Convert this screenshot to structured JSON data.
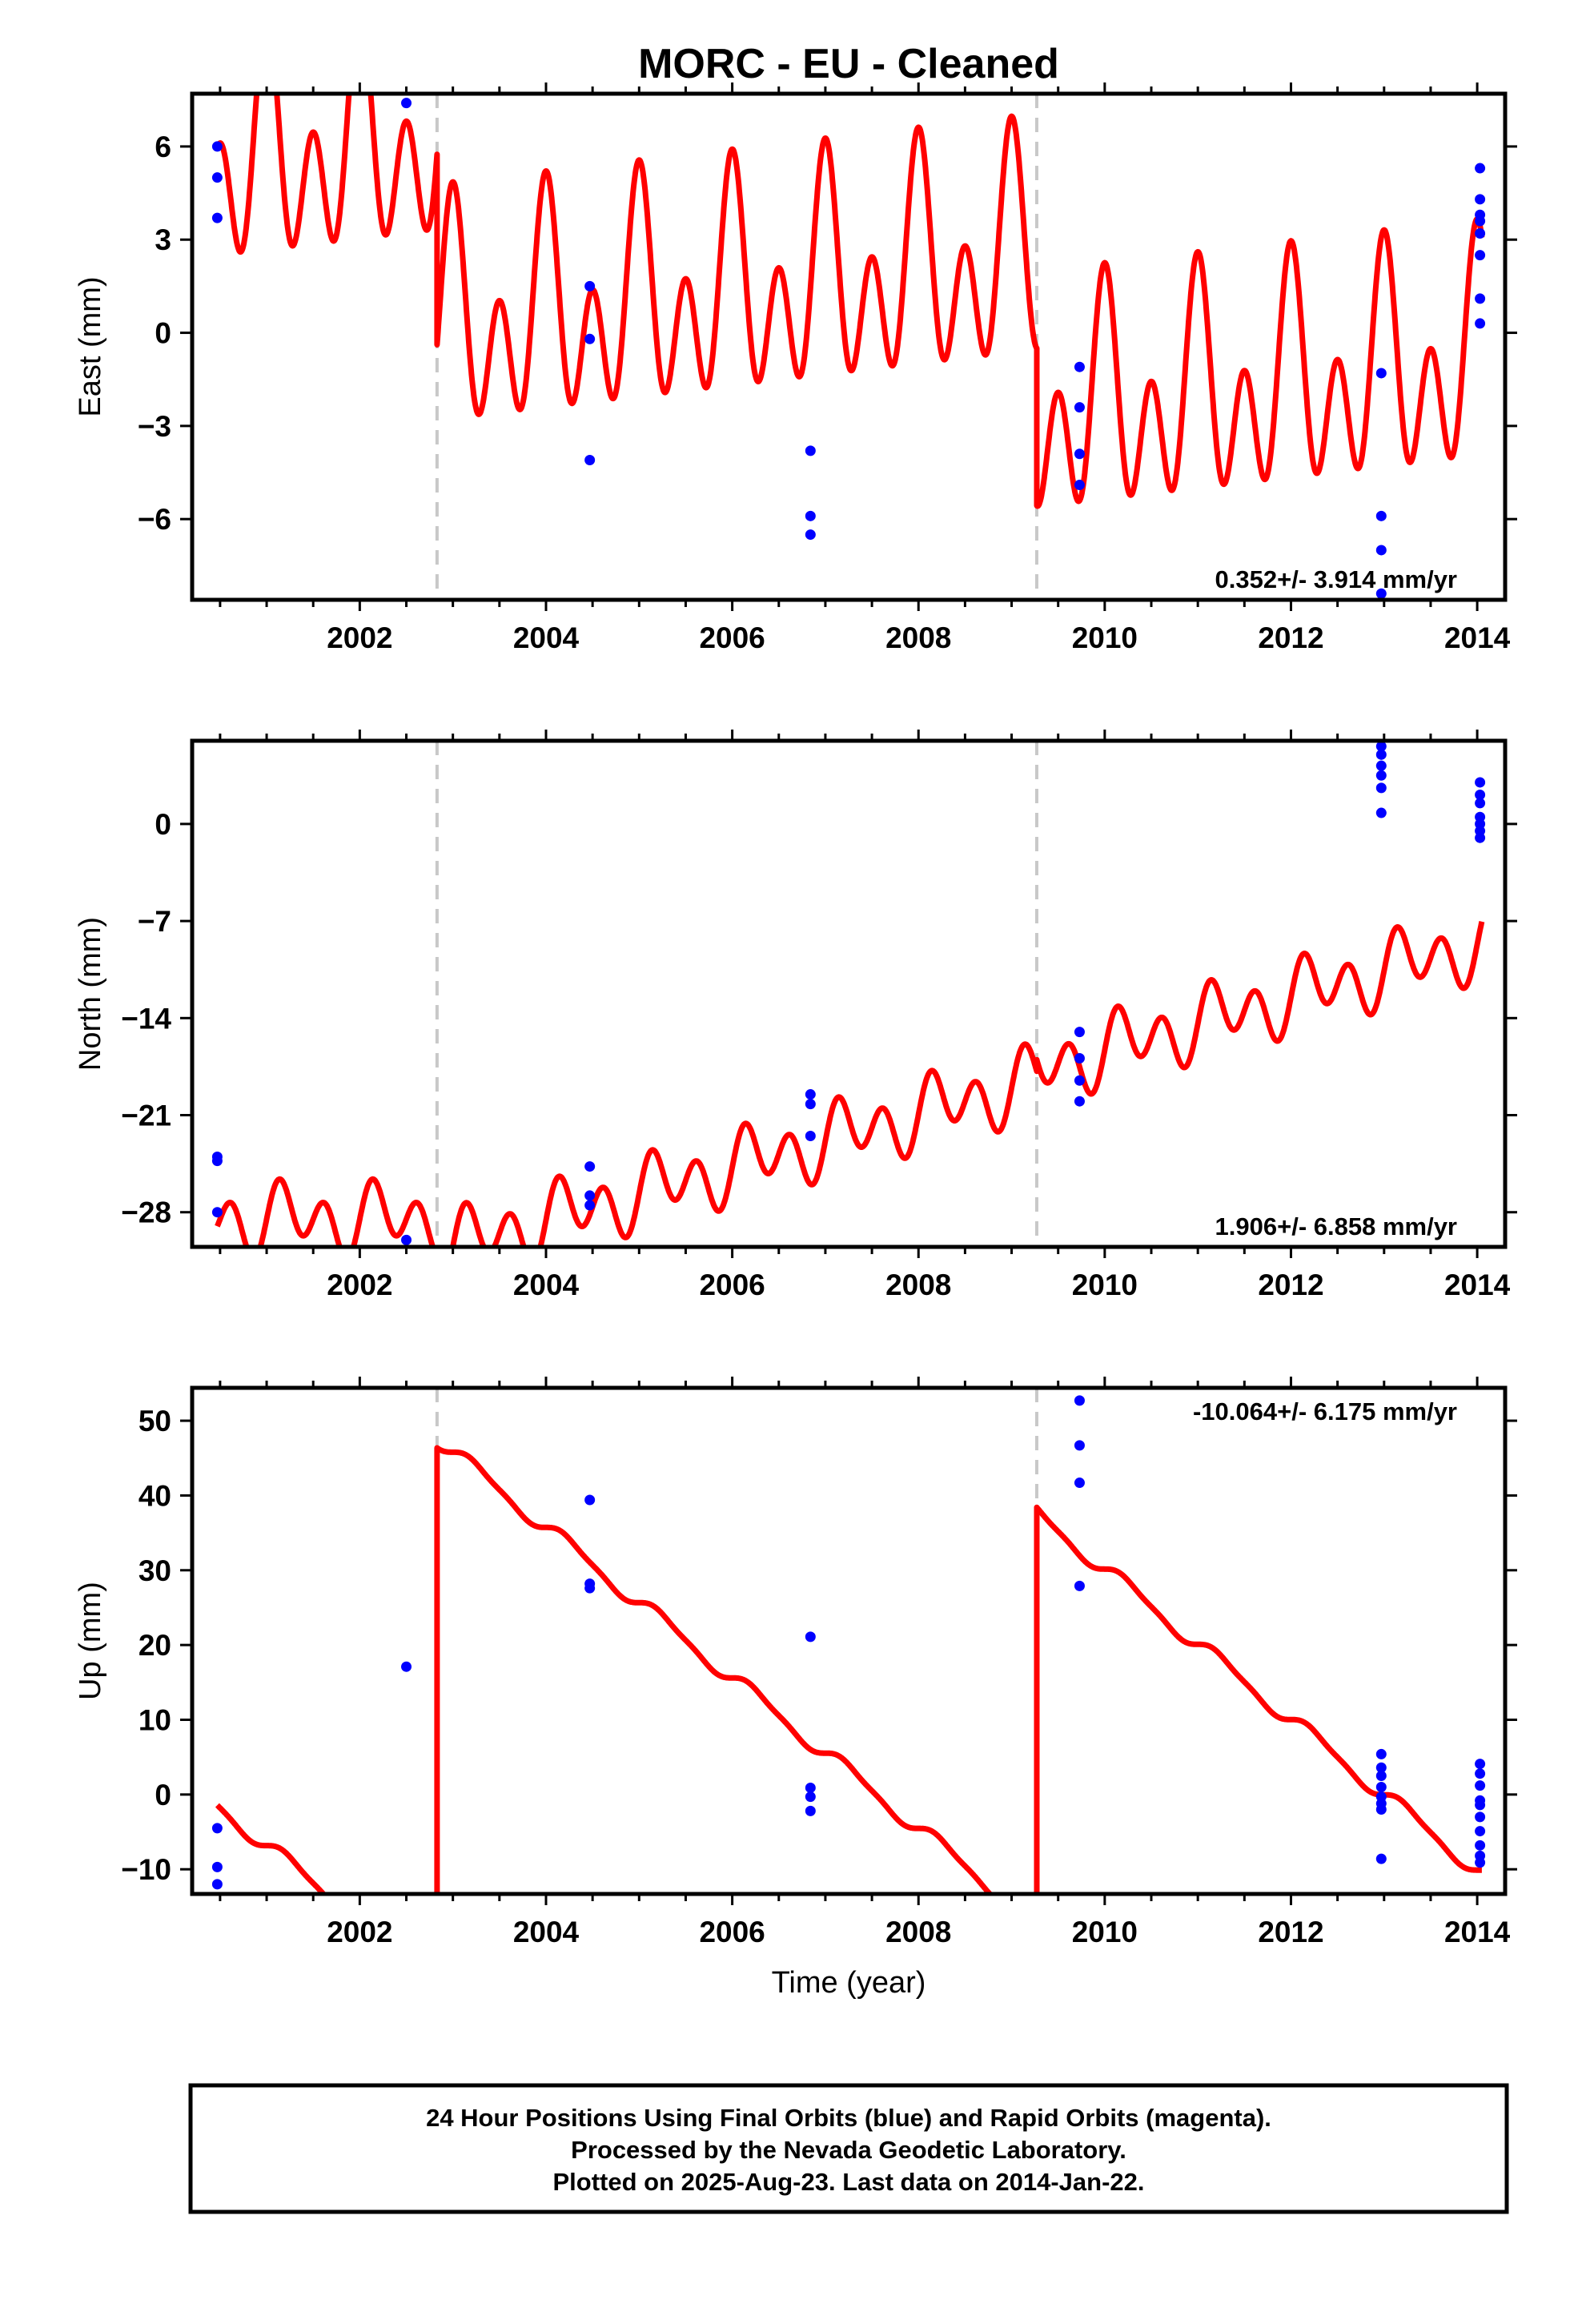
{
  "title": "MORC  - EU - Cleaned",
  "xlabel": "Time (year)",
  "footer": {
    "line1": "24 Hour Positions Using Final Orbits (blue) and Rapid Orbits (magenta).",
    "line2": "Processed by the Nevada Geodetic Laboratory.",
    "line3": "Plotted on 2025-Aug-23. Last data on 2014-Jan-22."
  },
  "colors": {
    "model": "#ff0000",
    "final_orbits": "#0000ff",
    "steps": "#c8c8c8",
    "frame": "#000000"
  },
  "chart_data": [
    {
      "type": "scatter",
      "panel": "east",
      "ylabel": "East (mm)",
      "xlim": [
        2000.2,
        2014.3
      ],
      "ylim": [
        -8.6,
        7.7
      ],
      "xticks": [
        2002,
        2004,
        2006,
        2008,
        2010,
        2012,
        2014
      ],
      "yticks": [
        -6,
        -3,
        0,
        3,
        6
      ],
      "ytick_labels": [
        "−6",
        "−3",
        "0",
        "3",
        "6"
      ],
      "grid": false,
      "rate_label": "0.352+/- 3.914 mm/yr",
      "rate_position": "bottom-right",
      "steps": [
        2002.83,
        2009.27
      ],
      "series": [
        {
          "values": [
            [
              2000.47,
              6.0
            ],
            [
              2000.47,
              5.0
            ],
            [
              2000.47,
              3.7
            ],
            [
              2002.5,
              7.4
            ],
            [
              2004.47,
              1.5
            ],
            [
              2004.47,
              -0.2
            ],
            [
              2004.47,
              -4.1
            ],
            [
              2006.84,
              -3.8
            ],
            [
              2006.84,
              -5.9
            ],
            [
              2006.84,
              -6.5
            ],
            [
              2009.73,
              -1.1
            ],
            [
              2009.73,
              -2.4
            ],
            [
              2009.73,
              -3.9
            ],
            [
              2009.73,
              -4.9
            ],
            [
              2012.97,
              -1.3
            ],
            [
              2012.97,
              -5.9
            ],
            [
              2012.97,
              -7.0
            ],
            [
              2012.97,
              -8.4
            ],
            [
              2014.03,
              5.3
            ],
            [
              2014.03,
              4.3
            ],
            [
              2014.03,
              3.8
            ],
            [
              2014.03,
              3.6
            ],
            [
              2014.03,
              3.2
            ],
            [
              2014.03,
              2.5
            ],
            [
              2014.03,
              1.1
            ],
            [
              2014.03,
              0.3
            ]
          ]
        }
      ],
      "model": {
        "segments": [
          {
            "start": 2000.47,
            "end": 2002.83,
            "offset": 5.4,
            "slope": 0.352,
            "annual_amp": 2.0,
            "annual_phase": 1.5708,
            "semiannual_amp": 2.7,
            "semiannual_phase": 1.5708
          },
          {
            "start": 2002.83,
            "end": 2009.27,
            "offset": 0.1,
            "slope": 0.352,
            "annual_amp": 2.0,
            "annual_phase": 1.5708,
            "semiannual_amp": 2.7,
            "semiannual_phase": 1.5708
          },
          {
            "start": 2009.27,
            "end": 2014.05,
            "offset": -2.7,
            "slope": 0.352,
            "annual_amp": 2.0,
            "annual_phase": 1.5708,
            "semiannual_amp": 2.7,
            "semiannual_phase": 1.5708
          }
        ]
      }
    },
    {
      "type": "scatter",
      "panel": "north",
      "ylabel": "North (mm)",
      "xlim": [
        2000.2,
        2014.3
      ],
      "ylim": [
        -30.5,
        6.0
      ],
      "xticks": [
        2002,
        2004,
        2006,
        2008,
        2010,
        2012,
        2014
      ],
      "yticks": [
        -28,
        -21,
        -14,
        -7,
        0
      ],
      "ytick_labels": [
        "−28",
        "−21",
        "−14",
        "−7",
        "0"
      ],
      "grid": false,
      "rate_label": "1.906+/- 6.858 mm/yr",
      "rate_position": "bottom-right",
      "steps": [
        2002.83,
        2009.27
      ],
      "series": [
        {
          "values": [
            [
              2000.47,
              -24.0
            ],
            [
              2000.47,
              -24.3
            ],
            [
              2000.47,
              -28.0
            ],
            [
              2002.5,
              -30.0
            ],
            [
              2004.47,
              -24.7
            ],
            [
              2004.47,
              -26.8
            ],
            [
              2004.47,
              -27.5
            ],
            [
              2006.84,
              -19.5
            ],
            [
              2006.84,
              -20.2
            ],
            [
              2006.84,
              -22.5
            ],
            [
              2009.73,
              -15.0
            ],
            [
              2009.73,
              -16.9
            ],
            [
              2009.73,
              -18.5
            ],
            [
              2009.73,
              -20.0
            ],
            [
              2012.97,
              5.6
            ],
            [
              2012.97,
              5.0
            ],
            [
              2012.97,
              4.2
            ],
            [
              2012.97,
              3.5
            ],
            [
              2012.97,
              2.6
            ],
            [
              2012.97,
              0.8
            ],
            [
              2014.03,
              3.0
            ],
            [
              2014.03,
              2.1
            ],
            [
              2014.03,
              1.5
            ],
            [
              2014.03,
              0.5
            ],
            [
              2014.03,
              0.0
            ],
            [
              2014.03,
              -0.5
            ],
            [
              2014.03,
              -1.0
            ]
          ]
        }
      ],
      "model": {
        "segments": [
          {
            "start": 2000.47,
            "end": 2002.83,
            "offset": -28.5,
            "slope": 0.0,
            "annual_amp": 1.2,
            "annual_phase": 0.0,
            "semiannual_amp": 2.0,
            "semiannual_phase": 0.0
          },
          {
            "start": 2002.83,
            "end": 2009.27,
            "offset": -30.8,
            "slope": 1.906,
            "annual_amp": 1.2,
            "annual_phase": 0.0,
            "semiannual_amp": 2.0,
            "semiannual_phase": 0.0
          },
          {
            "start": 2009.27,
            "end": 2014.05,
            "offset": -17.7,
            "slope": 1.906,
            "annual_amp": 1.2,
            "annual_phase": 0.0,
            "semiannual_amp": 2.0,
            "semiannual_phase": 0.0
          }
        ]
      }
    },
    {
      "type": "scatter",
      "panel": "up",
      "ylabel": "Up (mm)",
      "xlim": [
        2000.2,
        2014.3
      ],
      "ylim": [
        -13.3,
        54.4
      ],
      "xticks": [
        2002,
        2004,
        2006,
        2008,
        2010,
        2012,
        2014
      ],
      "yticks": [
        -10,
        0,
        10,
        20,
        30,
        40,
        50
      ],
      "ytick_labels": [
        "−10",
        "0",
        "10",
        "20",
        "30",
        "40",
        "50"
      ],
      "grid": false,
      "rate_label": "-10.064+/- 6.175 mm/yr",
      "rate_position": "top-right",
      "steps": [
        2002.83,
        2009.27
      ],
      "series": [
        {
          "values": [
            [
              2000.47,
              -4.5
            ],
            [
              2000.47,
              -9.7
            ],
            [
              2000.47,
              -12.0
            ],
            [
              2002.5,
              17.1
            ],
            [
              2004.47,
              39.4
            ],
            [
              2004.47,
              28.2
            ],
            [
              2004.47,
              27.6
            ],
            [
              2006.84,
              21.1
            ],
            [
              2006.84,
              0.9
            ],
            [
              2006.84,
              -0.3
            ],
            [
              2006.84,
              -2.2
            ],
            [
              2009.73,
              52.7
            ],
            [
              2009.73,
              46.7
            ],
            [
              2009.73,
              41.7
            ],
            [
              2009.73,
              27.9
            ],
            [
              2012.97,
              5.4
            ],
            [
              2012.97,
              3.6
            ],
            [
              2012.97,
              2.5
            ],
            [
              2012.97,
              1.0
            ],
            [
              2012.97,
              -0.3
            ],
            [
              2012.97,
              -1.2
            ],
            [
              2012.97,
              -2.0
            ],
            [
              2012.97,
              -8.6
            ],
            [
              2014.03,
              4.1
            ],
            [
              2014.03,
              2.8
            ],
            [
              2014.03,
              1.2
            ],
            [
              2014.03,
              -0.8
            ],
            [
              2014.03,
              -1.4
            ],
            [
              2014.03,
              -3.0
            ],
            [
              2014.03,
              -4.9
            ],
            [
              2014.03,
              -6.8
            ],
            [
              2014.03,
              -8.2
            ],
            [
              2014.03,
              -9.1
            ]
          ]
        }
      ],
      "model": {
        "segments": [
          {
            "start": 2000.47,
            "end": 2002.83,
            "offset": -1.5,
            "slope": -10.064,
            "annual_amp": 1.0,
            "annual_phase": 0.0,
            "semiannual_amp": 0.3,
            "semiannual_phase": 0.0
          },
          {
            "start": 2002.83,
            "end": 2009.27,
            "offset": 47.5,
            "slope": -10.064,
            "annual_amp": 1.0,
            "annual_phase": 0.0,
            "semiannual_amp": 0.3,
            "semiannual_phase": 0.0
          },
          {
            "start": 2009.27,
            "end": 2014.05,
            "offset": 37.5,
            "slope": -10.064,
            "annual_amp": 1.0,
            "annual_phase": 0.0,
            "semiannual_amp": 0.3,
            "semiannual_phase": 0.0
          }
        ]
      }
    }
  ]
}
